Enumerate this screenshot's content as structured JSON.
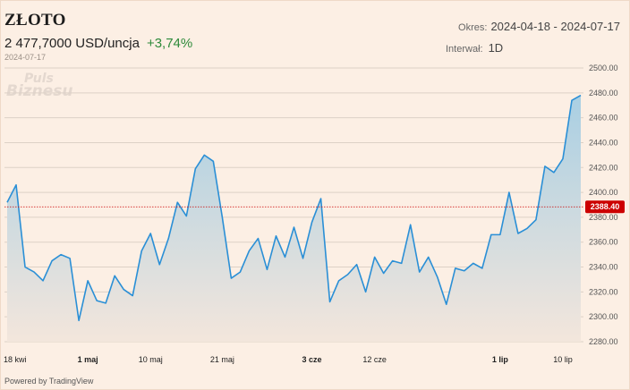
{
  "header": {
    "title": "ZŁOTO",
    "price": "2 477,7000 USD/uncja",
    "change": "+3,74%",
    "date": "2024-07-17",
    "period_label": "Okres:",
    "period_value": "2024-04-18 - 2024-07-17",
    "interval_label": "Interwał:",
    "interval_value": "1D"
  },
  "watermark": {
    "line1": "Puls",
    "line2": "Biznesu"
  },
  "footer": {
    "powered": "Powered by TradingView"
  },
  "colors": {
    "line": "#2a8fd6",
    "fill_top": "#a9cfe3",
    "fill_bottom": "#f3e6dc",
    "last_label": "#cc0000",
    "grid": "#ddd1c6"
  },
  "chart_data": {
    "type": "area",
    "title": "ZŁOTO",
    "xlabel": "",
    "ylabel": "",
    "ylim": [
      2280,
      2500
    ],
    "y_ticks": [
      2280,
      2300,
      2320,
      2340,
      2360,
      2380,
      2400,
      2420,
      2440,
      2460,
      2480,
      2500
    ],
    "y_tick_labels": [
      "2280.00",
      "2300.00",
      "2320.00",
      "2340.00",
      "2360.00",
      "2380.00",
      "2400.00",
      "2420.00",
      "2440.00",
      "2460.00",
      "2480.00",
      "2500.00"
    ],
    "x_ticks": [
      {
        "label": "18 kwi",
        "index": 0,
        "bold": false
      },
      {
        "label": "1 maj",
        "index": 9,
        "bold": true
      },
      {
        "label": "10 maj",
        "index": 16,
        "bold": false
      },
      {
        "label": "21 maj",
        "index": 24,
        "bold": false
      },
      {
        "label": "3 cze",
        "index": 34,
        "bold": true
      },
      {
        "label": "12 cze",
        "index": 41,
        "bold": false
      },
      {
        "label": "1 lip",
        "index": 55,
        "bold": true
      },
      {
        "label": "10 lip",
        "index": 62,
        "bold": false
      }
    ],
    "reference_line": {
      "value": 2388.4,
      "label": "2388.40"
    },
    "grid": true,
    "series": [
      {
        "values": [
          2392,
          2406,
          2340,
          2336,
          2329,
          2345,
          2350,
          2347,
          2297,
          2329,
          2313,
          2311,
          2333,
          2322,
          2317,
          2353,
          2367,
          2342,
          2363,
          2392,
          2381,
          2419,
          2430,
          2425,
          2380,
          2331,
          2336,
          2353,
          2363,
          2338,
          2365,
          2348,
          2372,
          2347,
          2376,
          2395,
          2312,
          2329,
          2334,
          2342,
          2320,
          2348,
          2335,
          2345,
          2343,
          2374,
          2336,
          2348,
          2332,
          2310,
          2339,
          2337,
          2343,
          2339,
          2366,
          2366,
          2400,
          2367,
          2371,
          2378,
          2421,
          2416,
          2427,
          2474,
          2478
        ]
      }
    ]
  }
}
